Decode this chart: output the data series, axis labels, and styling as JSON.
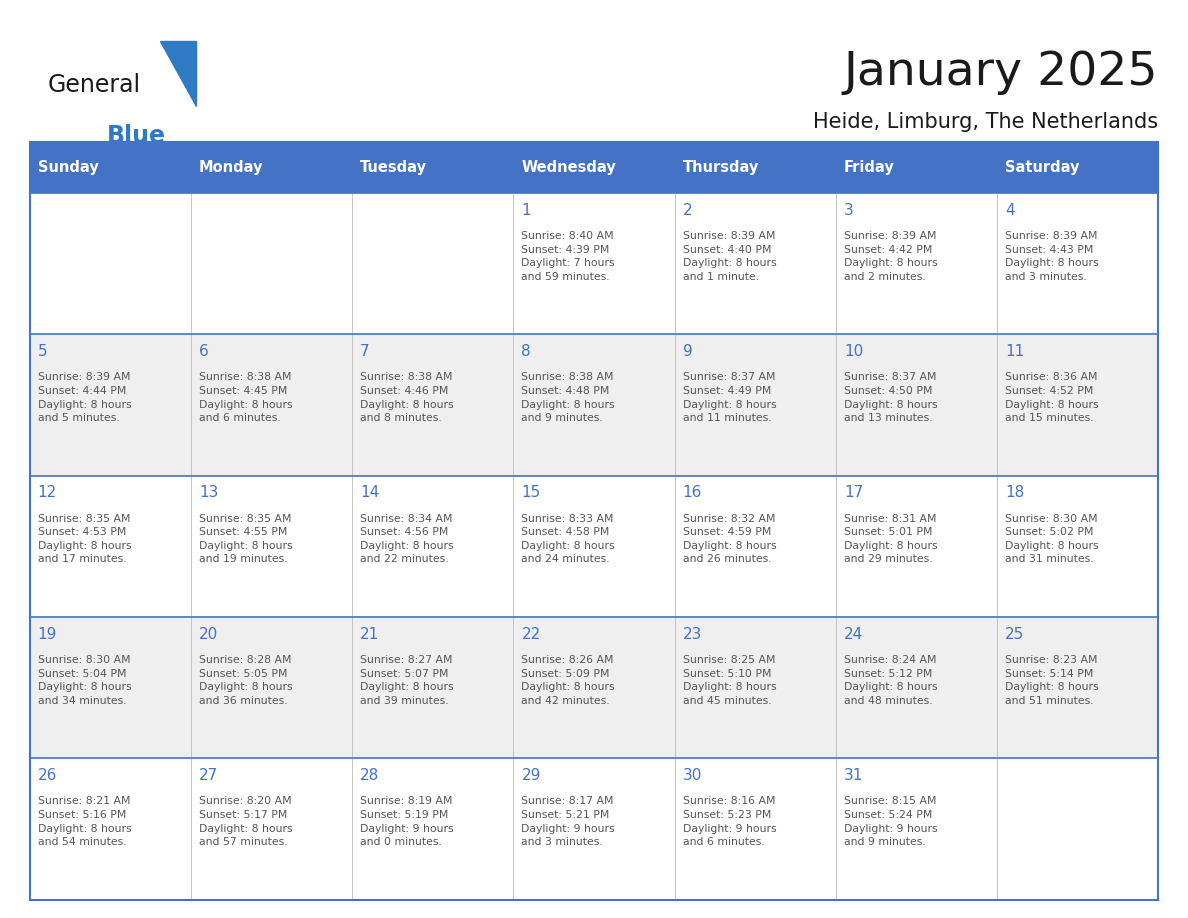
{
  "title": "January 2025",
  "subtitle": "Heide, Limburg, The Netherlands",
  "header_bg": "#4472C4",
  "header_text_color": "#FFFFFF",
  "cell_bg_white": "#FFFFFF",
  "cell_bg_gray": "#EFEFEF",
  "day_number_color": "#4472C4",
  "text_color": "#555555",
  "border_color": "#4472C4",
  "row_divider_color": "#4472C4",
  "days_of_week": [
    "Sunday",
    "Monday",
    "Tuesday",
    "Wednesday",
    "Thursday",
    "Friday",
    "Saturday"
  ],
  "weeks": [
    [
      {
        "day": "",
        "info": ""
      },
      {
        "day": "",
        "info": ""
      },
      {
        "day": "",
        "info": ""
      },
      {
        "day": "1",
        "info": "Sunrise: 8:40 AM\nSunset: 4:39 PM\nDaylight: 7 hours\nand 59 minutes."
      },
      {
        "day": "2",
        "info": "Sunrise: 8:39 AM\nSunset: 4:40 PM\nDaylight: 8 hours\nand 1 minute."
      },
      {
        "day": "3",
        "info": "Sunrise: 8:39 AM\nSunset: 4:42 PM\nDaylight: 8 hours\nand 2 minutes."
      },
      {
        "day": "4",
        "info": "Sunrise: 8:39 AM\nSunset: 4:43 PM\nDaylight: 8 hours\nand 3 minutes."
      }
    ],
    [
      {
        "day": "5",
        "info": "Sunrise: 8:39 AM\nSunset: 4:44 PM\nDaylight: 8 hours\nand 5 minutes."
      },
      {
        "day": "6",
        "info": "Sunrise: 8:38 AM\nSunset: 4:45 PM\nDaylight: 8 hours\nand 6 minutes."
      },
      {
        "day": "7",
        "info": "Sunrise: 8:38 AM\nSunset: 4:46 PM\nDaylight: 8 hours\nand 8 minutes."
      },
      {
        "day": "8",
        "info": "Sunrise: 8:38 AM\nSunset: 4:48 PM\nDaylight: 8 hours\nand 9 minutes."
      },
      {
        "day": "9",
        "info": "Sunrise: 8:37 AM\nSunset: 4:49 PM\nDaylight: 8 hours\nand 11 minutes."
      },
      {
        "day": "10",
        "info": "Sunrise: 8:37 AM\nSunset: 4:50 PM\nDaylight: 8 hours\nand 13 minutes."
      },
      {
        "day": "11",
        "info": "Sunrise: 8:36 AM\nSunset: 4:52 PM\nDaylight: 8 hours\nand 15 minutes."
      }
    ],
    [
      {
        "day": "12",
        "info": "Sunrise: 8:35 AM\nSunset: 4:53 PM\nDaylight: 8 hours\nand 17 minutes."
      },
      {
        "day": "13",
        "info": "Sunrise: 8:35 AM\nSunset: 4:55 PM\nDaylight: 8 hours\nand 19 minutes."
      },
      {
        "day": "14",
        "info": "Sunrise: 8:34 AM\nSunset: 4:56 PM\nDaylight: 8 hours\nand 22 minutes."
      },
      {
        "day": "15",
        "info": "Sunrise: 8:33 AM\nSunset: 4:58 PM\nDaylight: 8 hours\nand 24 minutes."
      },
      {
        "day": "16",
        "info": "Sunrise: 8:32 AM\nSunset: 4:59 PM\nDaylight: 8 hours\nand 26 minutes."
      },
      {
        "day": "17",
        "info": "Sunrise: 8:31 AM\nSunset: 5:01 PM\nDaylight: 8 hours\nand 29 minutes."
      },
      {
        "day": "18",
        "info": "Sunrise: 8:30 AM\nSunset: 5:02 PM\nDaylight: 8 hours\nand 31 minutes."
      }
    ],
    [
      {
        "day": "19",
        "info": "Sunrise: 8:30 AM\nSunset: 5:04 PM\nDaylight: 8 hours\nand 34 minutes."
      },
      {
        "day": "20",
        "info": "Sunrise: 8:28 AM\nSunset: 5:05 PM\nDaylight: 8 hours\nand 36 minutes."
      },
      {
        "day": "21",
        "info": "Sunrise: 8:27 AM\nSunset: 5:07 PM\nDaylight: 8 hours\nand 39 minutes."
      },
      {
        "day": "22",
        "info": "Sunrise: 8:26 AM\nSunset: 5:09 PM\nDaylight: 8 hours\nand 42 minutes."
      },
      {
        "day": "23",
        "info": "Sunrise: 8:25 AM\nSunset: 5:10 PM\nDaylight: 8 hours\nand 45 minutes."
      },
      {
        "day": "24",
        "info": "Sunrise: 8:24 AM\nSunset: 5:12 PM\nDaylight: 8 hours\nand 48 minutes."
      },
      {
        "day": "25",
        "info": "Sunrise: 8:23 AM\nSunset: 5:14 PM\nDaylight: 8 hours\nand 51 minutes."
      }
    ],
    [
      {
        "day": "26",
        "info": "Sunrise: 8:21 AM\nSunset: 5:16 PM\nDaylight: 8 hours\nand 54 minutes."
      },
      {
        "day": "27",
        "info": "Sunrise: 8:20 AM\nSunset: 5:17 PM\nDaylight: 8 hours\nand 57 minutes."
      },
      {
        "day": "28",
        "info": "Sunrise: 8:19 AM\nSunset: 5:19 PM\nDaylight: 9 hours\nand 0 minutes."
      },
      {
        "day": "29",
        "info": "Sunrise: 8:17 AM\nSunset: 5:21 PM\nDaylight: 9 hours\nand 3 minutes."
      },
      {
        "day": "30",
        "info": "Sunrise: 8:16 AM\nSunset: 5:23 PM\nDaylight: 9 hours\nand 6 minutes."
      },
      {
        "day": "31",
        "info": "Sunrise: 8:15 AM\nSunset: 5:24 PM\nDaylight: 9 hours\nand 9 minutes."
      },
      {
        "day": "",
        "info": ""
      }
    ]
  ]
}
